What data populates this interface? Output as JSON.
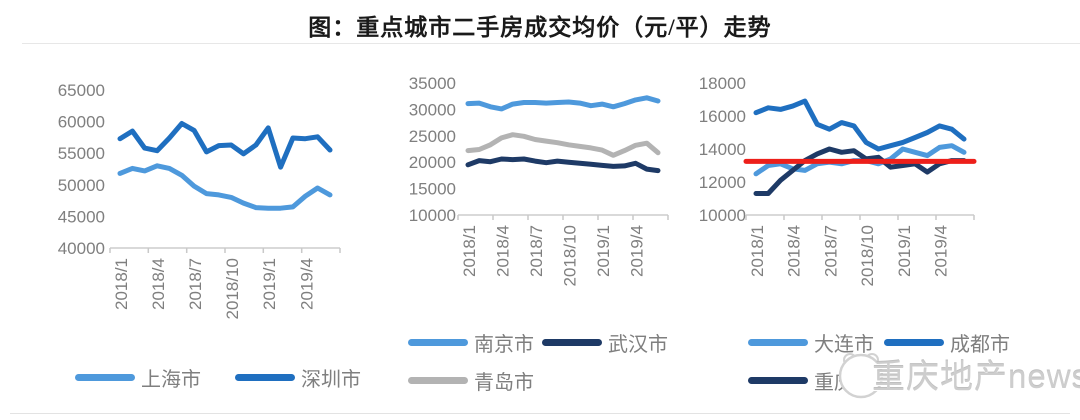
{
  "title": "图：重点城市二手房成交均价（元/平）走势",
  "watermark": {
    "text": "重庆地产news"
  },
  "colors": {
    "light_blue": "#4e99dc",
    "medium_blue": "#1f6fc0",
    "navy": "#1e3a66",
    "gray": "#b3b3b3",
    "red": "#ed1f1a",
    "axis_text": "#7f7f7f",
    "axis_line": "#d9d9d9"
  },
  "chart_data": [
    {
      "type": "line",
      "ylim": [
        40000,
        65000
      ],
      "y_ticks": [
        65000,
        60000,
        55000,
        50000,
        45000,
        40000
      ],
      "x_tick_labels": [
        "2018/1",
        "2018/4",
        "2018/7",
        "2018/10",
        "2019/1",
        "2019/4"
      ],
      "x_tick_indices": [
        0,
        3,
        6,
        9,
        12,
        15
      ],
      "categories": [
        "2018/1",
        "2018/2",
        "2018/3",
        "2018/4",
        "2018/5",
        "2018/6",
        "2018/7",
        "2018/8",
        "2018/9",
        "2018/10",
        "2018/11",
        "2018/12",
        "2019/1",
        "2019/2",
        "2019/3",
        "2019/4",
        "2019/5",
        "2019/6"
      ],
      "grid": false,
      "legend_position": "bottom",
      "series": [
        {
          "key": "shanghai",
          "name": "上海市",
          "color": "#4e99dc",
          "values": [
            51800,
            52600,
            52200,
            53000,
            52600,
            51500,
            49800,
            48600,
            48400,
            48000,
            47100,
            46400,
            46300,
            46300,
            46500,
            48200,
            49500,
            48400
          ]
        },
        {
          "key": "shenzhen",
          "name": "深圳市",
          "color": "#1f6fc0",
          "values": [
            57300,
            58500,
            55800,
            55400,
            57400,
            59700,
            58600,
            55200,
            56200,
            56300,
            54900,
            56300,
            59000,
            52800,
            57400,
            57300,
            57600,
            55500
          ]
        }
      ],
      "ref_line": null
    },
    {
      "type": "line",
      "ylim": [
        10000,
        35000
      ],
      "y_ticks": [
        35000,
        30000,
        25000,
        20000,
        15000,
        10000
      ],
      "x_tick_labels": [
        "2018/1",
        "2018/4",
        "2018/7",
        "2018/10",
        "2019/1",
        "2019/4"
      ],
      "x_tick_indices": [
        0,
        3,
        6,
        9,
        12,
        15
      ],
      "categories": [
        "2018/1",
        "2018/2",
        "2018/3",
        "2018/4",
        "2018/5",
        "2018/6",
        "2018/7",
        "2018/8",
        "2018/9",
        "2018/10",
        "2018/11",
        "2018/12",
        "2019/1",
        "2019/2",
        "2019/3",
        "2019/4",
        "2019/5",
        "2019/6"
      ],
      "grid": false,
      "legend_position": "bottom",
      "series": [
        {
          "key": "nanjing",
          "name": "南京市",
          "color": "#4e99dc",
          "values": [
            31100,
            31200,
            30500,
            30100,
            31000,
            31300,
            31300,
            31200,
            31300,
            31400,
            31200,
            30700,
            31000,
            30500,
            31100,
            31800,
            32200,
            31600
          ]
        },
        {
          "key": "wuhan",
          "name": "武汉市",
          "color": "#1e3a66",
          "values": [
            19500,
            20300,
            20100,
            20600,
            20500,
            20600,
            20200,
            19900,
            20200,
            20000,
            19800,
            19600,
            19400,
            19200,
            19300,
            19800,
            18700,
            18400
          ]
        },
        {
          "key": "qingdao",
          "name": "青岛市",
          "color": "#b3b3b3",
          "values": [
            22200,
            22400,
            23300,
            24600,
            25200,
            24900,
            24300,
            24000,
            23700,
            23300,
            23000,
            22700,
            22300,
            21300,
            22200,
            23200,
            23600,
            21800
          ]
        }
      ],
      "ref_line": null
    },
    {
      "type": "line",
      "ylim": [
        10000,
        18000
      ],
      "y_ticks": [
        18000,
        16000,
        14000,
        12000,
        10000
      ],
      "x_tick_labels": [
        "2018/1",
        "2018/4",
        "2018/7",
        "2018/10",
        "2019/1",
        "2019/4"
      ],
      "x_tick_indices": [
        0,
        3,
        6,
        9,
        12,
        15
      ],
      "categories": [
        "2018/1",
        "2018/2",
        "2018/3",
        "2018/4",
        "2018/5",
        "2018/6",
        "2018/7",
        "2018/8",
        "2018/9",
        "2018/10",
        "2018/11",
        "2018/12",
        "2019/1",
        "2019/2",
        "2019/3",
        "2019/4",
        "2019/5",
        "2019/6"
      ],
      "grid": false,
      "legend_position": "bottom",
      "series": [
        {
          "key": "dalian",
          "name": "大连市",
          "color": "#4e99dc",
          "values": [
            12500,
            13000,
            13100,
            12800,
            12700,
            13100,
            13200,
            13100,
            13300,
            13300,
            13100,
            13400,
            14000,
            13800,
            13600,
            14100,
            14200,
            13800
          ]
        },
        {
          "key": "chengdu",
          "name": "成都市",
          "color": "#1f6fc0",
          "values": [
            16200,
            16500,
            16400,
            16600,
            16900,
            15500,
            15200,
            15600,
            15400,
            14400,
            14000,
            14200,
            14400,
            14700,
            15000,
            15400,
            15200,
            14600
          ]
        },
        {
          "key": "chongqing",
          "name": "重庆市",
          "color": "#1e3a66",
          "values": [
            11300,
            11300,
            12100,
            12700,
            13300,
            13700,
            14000,
            13800,
            13900,
            13400,
            13500,
            12900,
            13000,
            13100,
            12600,
            13100,
            13300,
            13300
          ]
        }
      ],
      "ref_line": {
        "value": 13250,
        "color": "#ed1f1a"
      }
    }
  ]
}
